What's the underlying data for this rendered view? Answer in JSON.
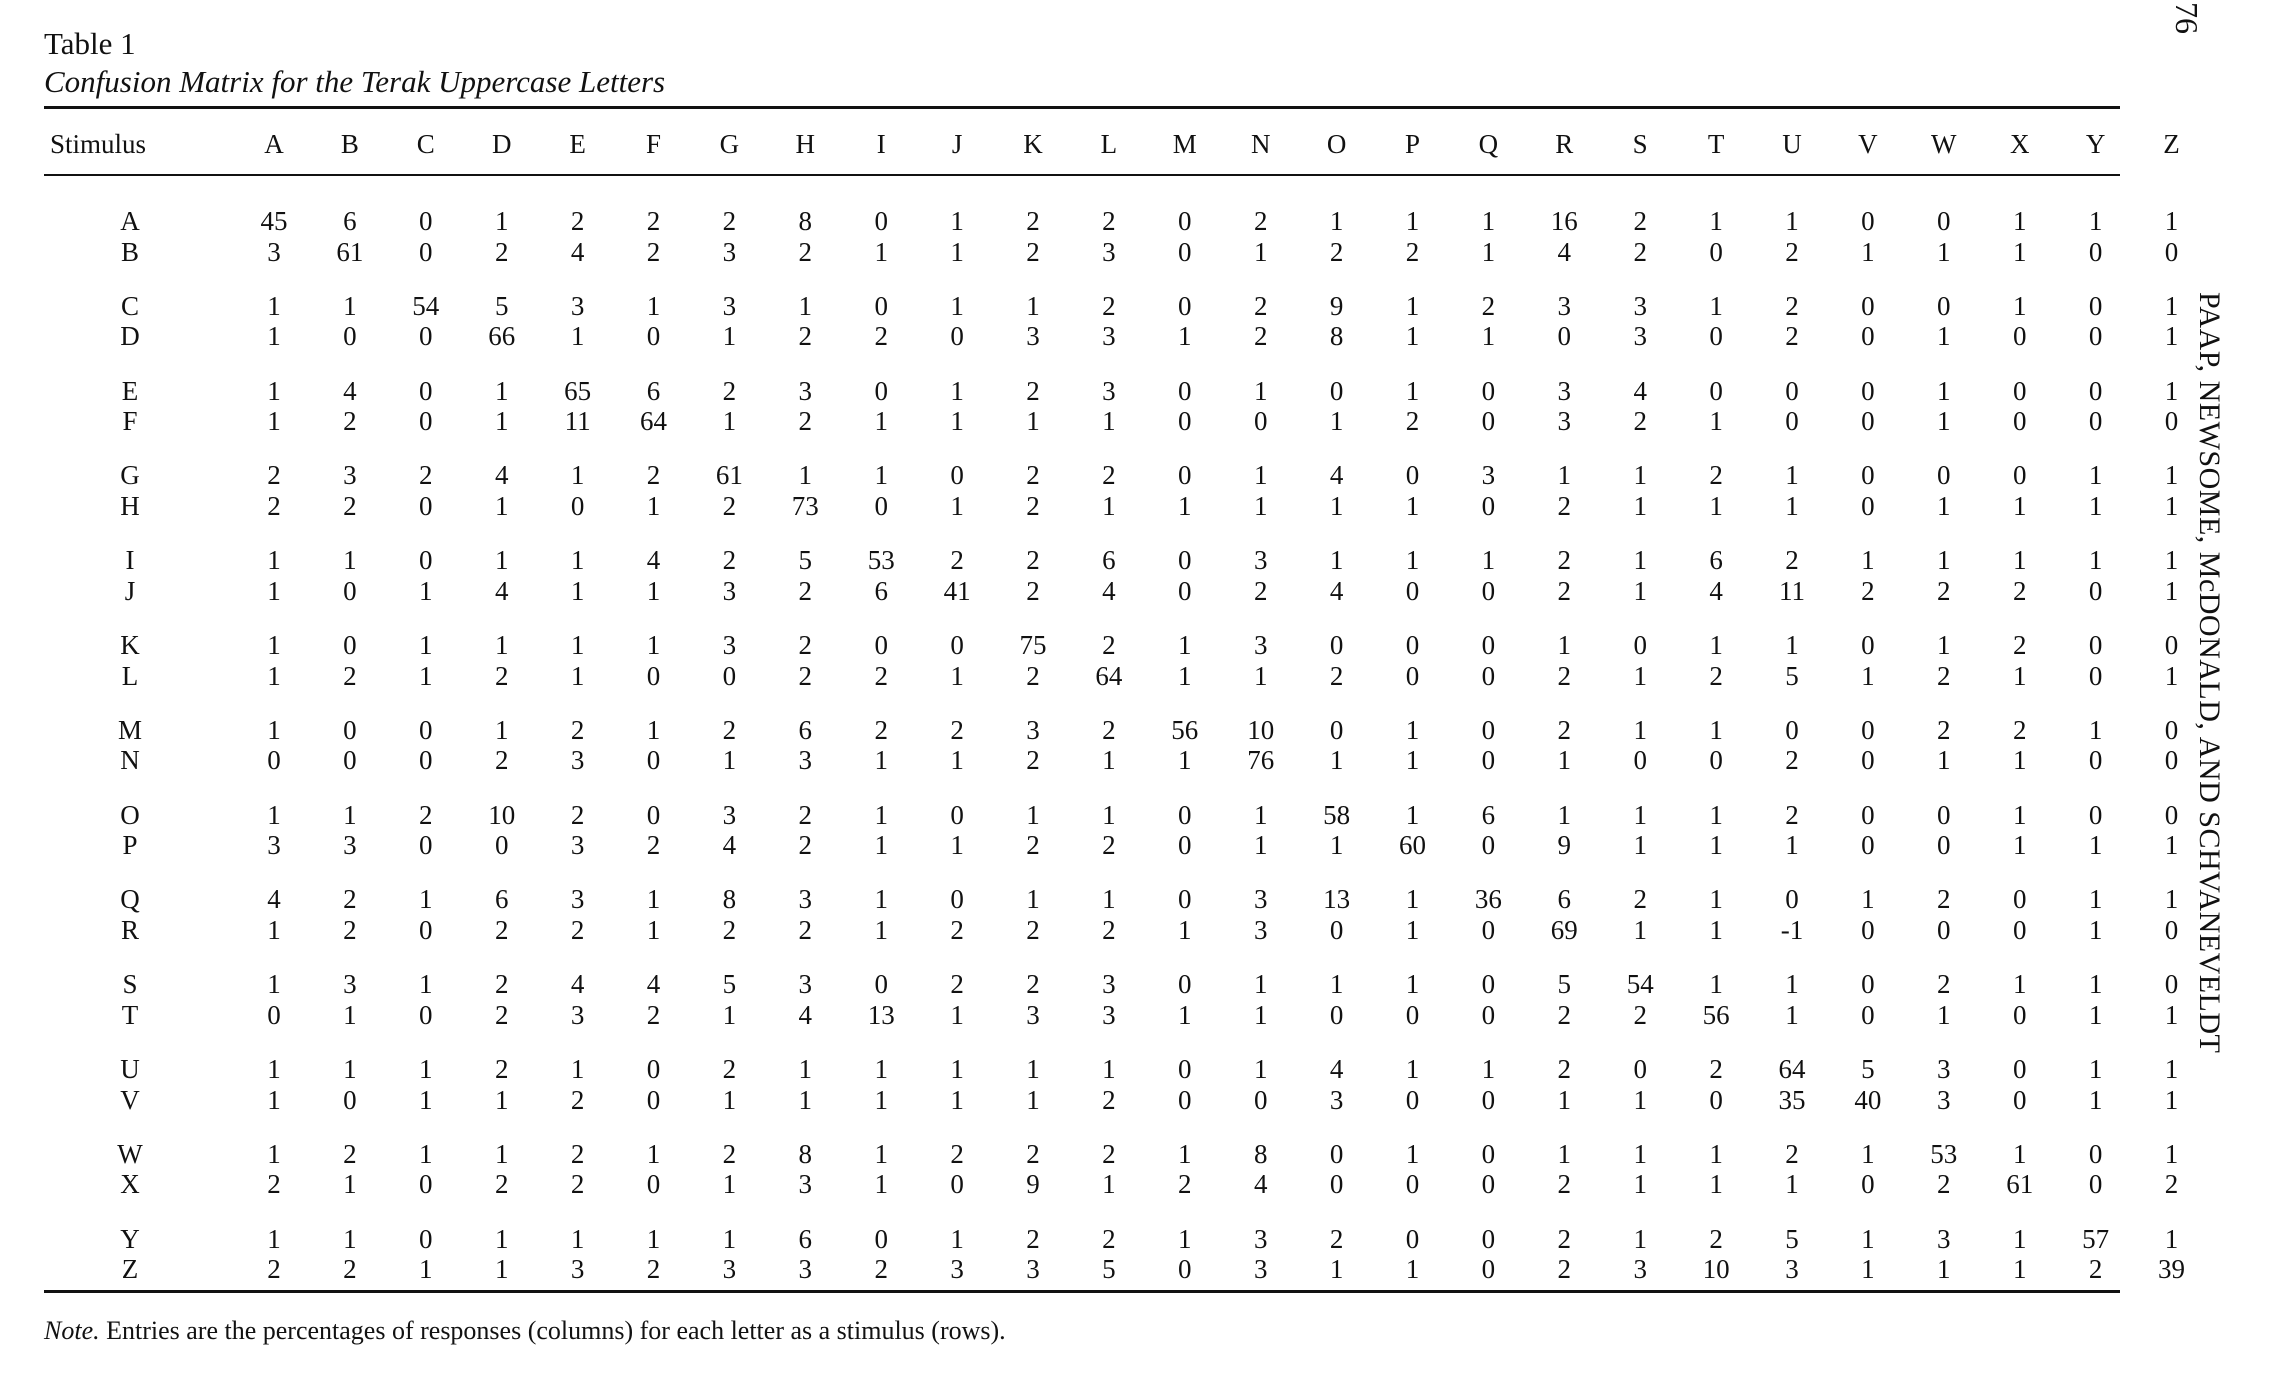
{
  "page_number": "76",
  "running_head": "PAAP, NEWSOME, McDONALD, AND SCHVANEVELDT",
  "table": {
    "label": "Table 1",
    "caption": "Confusion Matrix for the Terak Uppercase Letters",
    "stimulus_header": "Stimulus",
    "columns": [
      "A",
      "B",
      "C",
      "D",
      "E",
      "F",
      "G",
      "H",
      "I",
      "J",
      "K",
      "L",
      "M",
      "N",
      "O",
      "P",
      "Q",
      "R",
      "S",
      "T",
      "U",
      "V",
      "W",
      "X",
      "Y",
      "Z"
    ],
    "rows": [
      {
        "label": "A",
        "values": [
          "45",
          "6",
          "0",
          "1",
          "2",
          "2",
          "2",
          "8",
          "0",
          "1",
          "2",
          "2",
          "0",
          "2",
          "1",
          "1",
          "1",
          "16",
          "2",
          "1",
          "1",
          "0",
          "0",
          "1",
          "1",
          "1"
        ]
      },
      {
        "label": "B",
        "values": [
          "3",
          "61",
          "0",
          "2",
          "4",
          "2",
          "3",
          "2",
          "1",
          "1",
          "2",
          "3",
          "0",
          "1",
          "2",
          "2",
          "1",
          "4",
          "2",
          "0",
          "2",
          "1",
          "1",
          "1",
          "0",
          "0"
        ]
      },
      {
        "label": "C",
        "values": [
          "1",
          "1",
          "54",
          "5",
          "3",
          "1",
          "3",
          "1",
          "0",
          "1",
          "1",
          "2",
          "0",
          "2",
          "9",
          "1",
          "2",
          "3",
          "3",
          "1",
          "2",
          "0",
          "0",
          "1",
          "0",
          "1"
        ]
      },
      {
        "label": "D",
        "values": [
          "1",
          "0",
          "0",
          "66",
          "1",
          "0",
          "1",
          "2",
          "2",
          "0",
          "3",
          "3",
          "1",
          "2",
          "8",
          "1",
          "1",
          "0",
          "3",
          "0",
          "2",
          "0",
          "1",
          "0",
          "0",
          "1"
        ]
      },
      {
        "label": "E",
        "values": [
          "1",
          "4",
          "0",
          "1",
          "65",
          "6",
          "2",
          "3",
          "0",
          "1",
          "2",
          "3",
          "0",
          "1",
          "0",
          "1",
          "0",
          "3",
          "4",
          "0",
          "0",
          "0",
          "1",
          "0",
          "0",
          "1"
        ]
      },
      {
        "label": "F",
        "values": [
          "1",
          "2",
          "0",
          "1",
          "11",
          "64",
          "1",
          "2",
          "1",
          "1",
          "1",
          "1",
          "0",
          "0",
          "1",
          "2",
          "0",
          "3",
          "2",
          "1",
          "0",
          "0",
          "1",
          "0",
          "0",
          "0"
        ]
      },
      {
        "label": "G",
        "values": [
          "2",
          "3",
          "2",
          "4",
          "1",
          "2",
          "61",
          "1",
          "1",
          "0",
          "2",
          "2",
          "0",
          "1",
          "4",
          "0",
          "3",
          "1",
          "1",
          "2",
          "1",
          "0",
          "0",
          "0",
          "1",
          "1"
        ]
      },
      {
        "label": "H",
        "values": [
          "2",
          "2",
          "0",
          "1",
          "0",
          "1",
          "2",
          "73",
          "0",
          "1",
          "2",
          "1",
          "1",
          "1",
          "1",
          "1",
          "0",
          "2",
          "1",
          "1",
          "1",
          "0",
          "1",
          "1",
          "1",
          "1"
        ]
      },
      {
        "label": "I",
        "values": [
          "1",
          "1",
          "0",
          "1",
          "1",
          "4",
          "2",
          "5",
          "53",
          "2",
          "2",
          "6",
          "0",
          "3",
          "1",
          "1",
          "1",
          "2",
          "1",
          "6",
          "2",
          "1",
          "1",
          "1",
          "1",
          "1"
        ]
      },
      {
        "label": "J",
        "values": [
          "1",
          "0",
          "1",
          "4",
          "1",
          "1",
          "3",
          "2",
          "6",
          "41",
          "2",
          "4",
          "0",
          "2",
          "4",
          "0",
          "0",
          "2",
          "1",
          "4",
          "11",
          "2",
          "2",
          "2",
          "0",
          "1"
        ]
      },
      {
        "label": "K",
        "values": [
          "1",
          "0",
          "1",
          "1",
          "1",
          "1",
          "3",
          "2",
          "0",
          "0",
          "75",
          "2",
          "1",
          "3",
          "0",
          "0",
          "0",
          "1",
          "0",
          "1",
          "1",
          "0",
          "1",
          "2",
          "0",
          "0"
        ]
      },
      {
        "label": "L",
        "values": [
          "1",
          "2",
          "1",
          "2",
          "1",
          "0",
          "0",
          "2",
          "2",
          "1",
          "2",
          "64",
          "1",
          "1",
          "2",
          "0",
          "0",
          "2",
          "1",
          "2",
          "5",
          "1",
          "2",
          "1",
          "0",
          "1"
        ]
      },
      {
        "label": "M",
        "values": [
          "1",
          "0",
          "0",
          "1",
          "2",
          "1",
          "2",
          "6",
          "2",
          "2",
          "3",
          "2",
          "56",
          "10",
          "0",
          "1",
          "0",
          "2",
          "1",
          "1",
          "0",
          "0",
          "2",
          "2",
          "1",
          "0"
        ]
      },
      {
        "label": "N",
        "values": [
          "0",
          "0",
          "0",
          "2",
          "3",
          "0",
          "1",
          "3",
          "1",
          "1",
          "2",
          "1",
          "1",
          "76",
          "1",
          "1",
          "0",
          "1",
          "0",
          "0",
          "2",
          "0",
          "1",
          "1",
          "0",
          "0"
        ]
      },
      {
        "label": "O",
        "values": [
          "1",
          "1",
          "2",
          "10",
          "2",
          "0",
          "3",
          "2",
          "1",
          "0",
          "1",
          "1",
          "0",
          "1",
          "58",
          "1",
          "6",
          "1",
          "1",
          "1",
          "2",
          "0",
          "0",
          "1",
          "0",
          "0"
        ]
      },
      {
        "label": "P",
        "values": [
          "3",
          "3",
          "0",
          "0",
          "3",
          "2",
          "4",
          "2",
          "1",
          "1",
          "2",
          "2",
          "0",
          "1",
          "1",
          "60",
          "0",
          "9",
          "1",
          "1",
          "1",
          "0",
          "0",
          "1",
          "1",
          "1"
        ]
      },
      {
        "label": "Q",
        "values": [
          "4",
          "2",
          "1",
          "6",
          "3",
          "1",
          "8",
          "3",
          "1",
          "0",
          "1",
          "1",
          "0",
          "3",
          "13",
          "1",
          "36",
          "6",
          "2",
          "1",
          "0",
          "1",
          "2",
          "0",
          "1",
          "1"
        ]
      },
      {
        "label": "R",
        "values": [
          "1",
          "2",
          "0",
          "2",
          "2",
          "1",
          "2",
          "2",
          "1",
          "2",
          "2",
          "2",
          "1",
          "3",
          "0",
          "1",
          "0",
          "69",
          "1",
          "1",
          "-1",
          "0",
          "0",
          "0",
          "1",
          "0"
        ]
      },
      {
        "label": "S",
        "values": [
          "1",
          "3",
          "1",
          "2",
          "4",
          "4",
          "5",
          "3",
          "0",
          "2",
          "2",
          "3",
          "0",
          "1",
          "1",
          "1",
          "0",
          "5",
          "54",
          "1",
          "1",
          "0",
          "2",
          "1",
          "1",
          "0"
        ]
      },
      {
        "label": "T",
        "values": [
          "0",
          "1",
          "0",
          "2",
          "3",
          "2",
          "1",
          "4",
          "13",
          "1",
          "3",
          "3",
          "1",
          "1",
          "0",
          "0",
          "0",
          "2",
          "2",
          "56",
          "1",
          "0",
          "1",
          "0",
          "1",
          "1"
        ]
      },
      {
        "label": "U",
        "values": [
          "1",
          "1",
          "1",
          "2",
          "1",
          "0",
          "2",
          "1",
          "1",
          "1",
          "1",
          "1",
          "0",
          "1",
          "4",
          "1",
          "1",
          "2",
          "0",
          "2",
          "64",
          "5",
          "3",
          "0",
          "1",
          "1"
        ]
      },
      {
        "label": "V",
        "values": [
          "1",
          "0",
          "1",
          "1",
          "2",
          "0",
          "1",
          "1",
          "1",
          "1",
          "1",
          "2",
          "0",
          "0",
          "3",
          "0",
          "0",
          "1",
          "1",
          "0",
          "35",
          "40",
          "3",
          "0",
          "1",
          "1"
        ]
      },
      {
        "label": "W",
        "values": [
          "1",
          "2",
          "1",
          "1",
          "2",
          "1",
          "2",
          "8",
          "1",
          "2",
          "2",
          "2",
          "1",
          "8",
          "0",
          "1",
          "0",
          "1",
          "1",
          "1",
          "2",
          "1",
          "53",
          "1",
          "0",
          "1"
        ]
      },
      {
        "label": "X",
        "values": [
          "2",
          "1",
          "0",
          "2",
          "2",
          "0",
          "1",
          "3",
          "1",
          "0",
          "9",
          "1",
          "2",
          "4",
          "0",
          "0",
          "0",
          "2",
          "1",
          "1",
          "1",
          "0",
          "2",
          "61",
          "0",
          "2"
        ]
      },
      {
        "label": "Y",
        "values": [
          "1",
          "1",
          "0",
          "1",
          "1",
          "1",
          "1",
          "6",
          "0",
          "1",
          "2",
          "2",
          "1",
          "3",
          "2",
          "0",
          "0",
          "2",
          "1",
          "2",
          "5",
          "1",
          "3",
          "1",
          "57",
          "1"
        ]
      },
      {
        "label": "Z",
        "values": [
          "2",
          "2",
          "1",
          "1",
          "3",
          "2",
          "3",
          "3",
          "2",
          "3",
          "3",
          "5",
          "0",
          "3",
          "1",
          "1",
          "0",
          "2",
          "3",
          "10",
          "3",
          "1",
          "1",
          "1",
          "2",
          "39"
        ]
      }
    ]
  },
  "note": {
    "label": "Note.",
    "text": " Entries are the percentages of responses (columns) for each letter as a stimulus (rows)."
  }
}
